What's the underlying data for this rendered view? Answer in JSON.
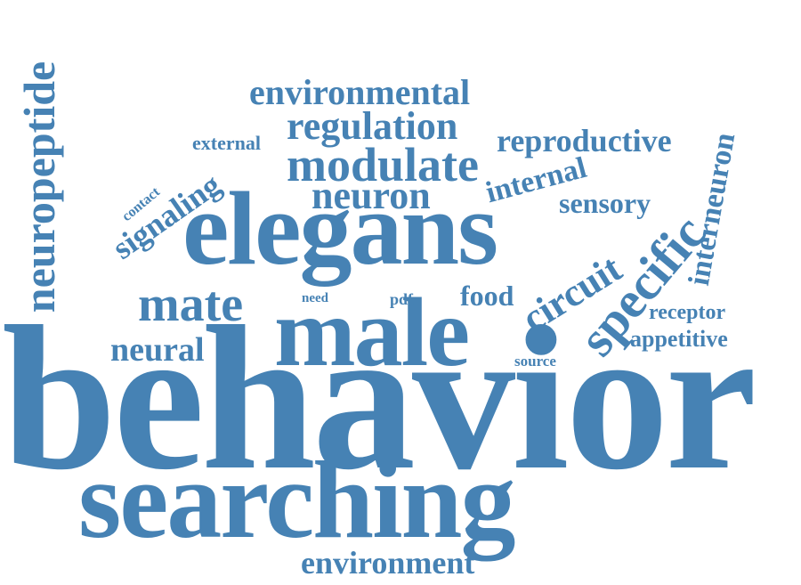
{
  "theme": {
    "word_color": "#4682b4",
    "background": "#ffffff"
  },
  "words": {
    "behavior": "behavior",
    "searching": "searching",
    "elegans": "elegans",
    "male": "male",
    "neuropeptide": "neuropeptide",
    "modulate": "modulate",
    "neuron": "neuron",
    "mate": "mate",
    "environmental": "environmental",
    "regulation": "regulation",
    "reproductive": "reproductive",
    "environment": "environment",
    "specific": "specific",
    "circuit": "circuit",
    "signaling": "signaling",
    "neural": "neural",
    "interneuron": "interneuron",
    "internal": "internal",
    "sensory": "sensory",
    "appetitive": "appetitive",
    "food": "food",
    "receptor": "receptor",
    "external": "external",
    "contact": "contact",
    "source": "source",
    "pdfr": "pdfr",
    "need": "need"
  }
}
